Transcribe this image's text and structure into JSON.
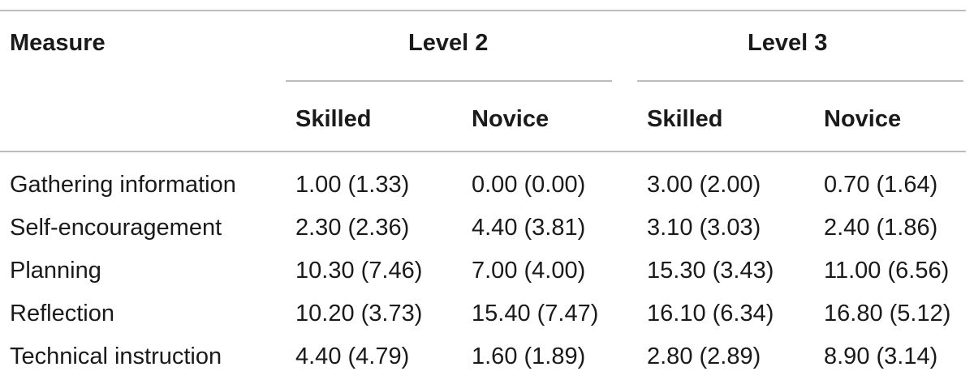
{
  "table": {
    "header": {
      "measure": "Measure",
      "level2": "Level 2",
      "level3": "Level 3",
      "skilled": "Skilled",
      "novice": "Novice"
    },
    "rows": [
      {
        "measure": "Gathering information",
        "l2_skilled": "1.00 (1.33)",
        "l2_novice": "0.00 (0.00)",
        "l3_skilled": "3.00 (2.00)",
        "l3_novice": "0.70 (1.64)"
      },
      {
        "measure": "Self-encouragement",
        "l2_skilled": "2.30 (2.36)",
        "l2_novice": "4.40 (3.81)",
        "l3_skilled": "3.10 (3.03)",
        "l3_novice": "2.40 (1.86)"
      },
      {
        "measure": "Planning",
        "l2_skilled": "10.30 (7.46)",
        "l2_novice": "7.00 (4.00)",
        "l3_skilled": "15.30 (3.43)",
        "l3_novice": "11.00 (6.56)"
      },
      {
        "measure": "Reflection",
        "l2_skilled": "10.20 (3.73)",
        "l2_novice": "15.40 (7.47)",
        "l3_skilled": "16.10 (6.34)",
        "l3_novice": "16.80 (5.12)"
      },
      {
        "measure": "Technical instruction",
        "l2_skilled": "4.40 (4.79)",
        "l2_novice": "1.60 (1.89)",
        "l3_skilled": "2.80 (2.89)",
        "l3_novice": "8.90 (3.14)"
      }
    ]
  }
}
